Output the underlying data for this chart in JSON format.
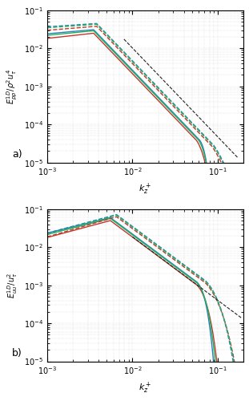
{
  "title_a": "a)",
  "title_b": "b)",
  "ylabel_a": "$E_{pp}^{1D}/\\rho^2 u_\\tau^4$",
  "ylabel_b": "$E_{uu}^{1D}/u_\\tau^2$",
  "xlabel": "$k_z^+$",
  "xlim": [
    0.001,
    0.2
  ],
  "ylim_a": [
    1e-05,
    0.1
  ],
  "ylim_b": [
    1e-05,
    0.1
  ],
  "color_red": "#c0392b",
  "color_blue": "#2980b9",
  "color_green": "#27ae60",
  "color_black": "#222222",
  "lw": 1.0,
  "law_lw": 0.8
}
